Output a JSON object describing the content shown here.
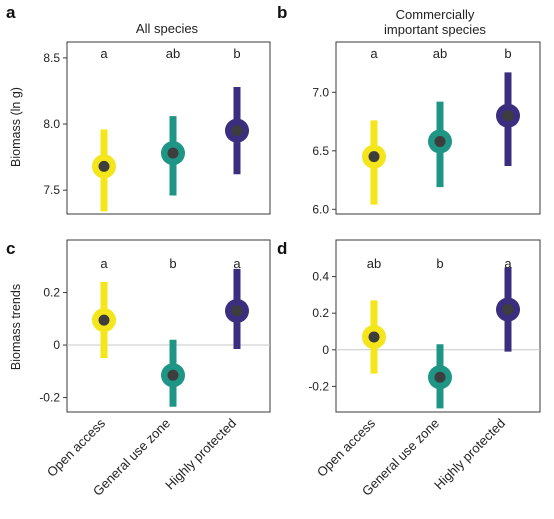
{
  "colors": {
    "open_access": "#f5e51b",
    "general_use_zone": "#1f9586",
    "highly_protected": "#3b2e7e",
    "center_dot": "#3d3d3d",
    "zero_line": "#c9c9c9"
  },
  "row_labels": [
    "Biomass (ln g)",
    "Biomass trends"
  ],
  "categories": [
    "Open access",
    "General use zone",
    "Highly protected"
  ],
  "chart_data": [
    {
      "type": "scatter",
      "panel": "a",
      "title": "All species",
      "xlabel": "",
      "ylabel": "Biomass (ln g)",
      "categories": [
        "Open access",
        "General use zone",
        "Highly protected"
      ],
      "ylim": [
        7.32,
        8.62
      ],
      "yticks": [
        7.5,
        8.0,
        8.5
      ],
      "ytick_labels": [
        "7.5",
        "8.0",
        "8.5"
      ],
      "zero_line": false,
      "points": [
        {
          "category": "Open access",
          "mean": 7.68,
          "lower": 7.34,
          "upper": 7.96,
          "significance": "a"
        },
        {
          "category": "General use zone",
          "mean": 7.78,
          "lower": 7.46,
          "upper": 8.06,
          "significance": "ab"
        },
        {
          "category": "Highly protected",
          "mean": 7.95,
          "lower": 7.62,
          "upper": 8.28,
          "significance": "b"
        }
      ]
    },
    {
      "type": "scatter",
      "panel": "b",
      "title": "Commercially important species",
      "xlabel": "",
      "ylabel": "",
      "categories": [
        "Open access",
        "General use zone",
        "Highly protected"
      ],
      "ylim": [
        5.96,
        7.43
      ],
      "yticks": [
        6.0,
        6.5,
        7.0
      ],
      "ytick_labels": [
        "6.0",
        "6.5",
        "7.0"
      ],
      "zero_line": false,
      "points": [
        {
          "category": "Open access",
          "mean": 6.45,
          "lower": 6.04,
          "upper": 6.76,
          "significance": "a"
        },
        {
          "category": "General use zone",
          "mean": 6.58,
          "lower": 6.19,
          "upper": 6.92,
          "significance": "ab"
        },
        {
          "category": "Highly protected",
          "mean": 6.8,
          "lower": 6.37,
          "upper": 7.17,
          "significance": "b"
        }
      ]
    },
    {
      "type": "scatter",
      "panel": "c",
      "title": "",
      "xlabel": "",
      "ylabel": "Biomass trends",
      "categories": [
        "Open access",
        "General use zone",
        "Highly protected"
      ],
      "ylim": [
        -0.255,
        0.4
      ],
      "yticks": [
        -0.2,
        0,
        0.2
      ],
      "ytick_labels": [
        "-0.2",
        "0",
        "0.2"
      ],
      "zero_line": true,
      "points": [
        {
          "category": "Open access",
          "mean": 0.095,
          "lower": -0.05,
          "upper": 0.24,
          "significance": "a"
        },
        {
          "category": "General use zone",
          "mean": -0.115,
          "lower": -0.235,
          "upper": 0.02,
          "significance": "b"
        },
        {
          "category": "Highly protected",
          "mean": 0.13,
          "lower": -0.015,
          "upper": 0.29,
          "significance": "a"
        }
      ]
    },
    {
      "type": "scatter",
      "panel": "d",
      "title": "",
      "xlabel": "",
      "ylabel": "",
      "categories": [
        "Open access",
        "General use zone",
        "Highly protected"
      ],
      "ylim": [
        -0.34,
        0.6
      ],
      "yticks": [
        -0.2,
        0,
        0.2,
        0.4
      ],
      "ytick_labels": [
        "-0.2",
        "0",
        "0.2",
        "0.4"
      ],
      "zero_line": true,
      "points": [
        {
          "category": "Open access",
          "mean": 0.07,
          "lower": -0.13,
          "upper": 0.27,
          "significance": "ab"
        },
        {
          "category": "General use zone",
          "mean": -0.15,
          "lower": -0.32,
          "upper": 0.03,
          "significance": "b"
        },
        {
          "category": "Highly protected",
          "mean": 0.22,
          "lower": -0.01,
          "upper": 0.45,
          "significance": "a"
        }
      ]
    }
  ]
}
